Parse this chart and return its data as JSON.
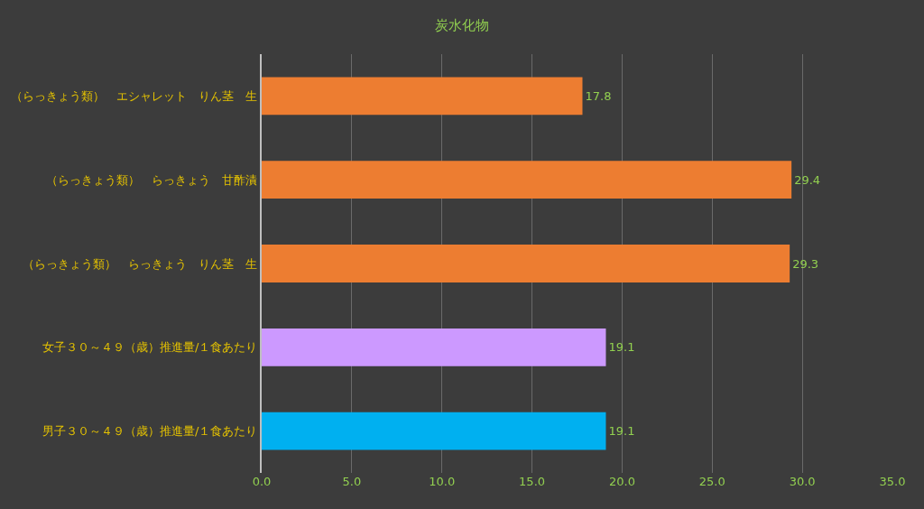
{
  "chart_data": {
    "type": "bar",
    "orientation": "horizontal",
    "title": "炭水化物",
    "categories": [
      "（らっきょう類）　エシャレット　りん茎　生",
      "（らっきょう類）　らっきょう　甘酢漬",
      "（らっきょう類）　らっきょう　りん茎　生",
      "女子３０～４９（歳）推進量/１食あたり",
      "男子３０～４９（歳）推進量/１食あたり"
    ],
    "values": [
      17.8,
      29.4,
      29.3,
      19.1,
      19.1
    ],
    "colors": [
      "#ed7d31",
      "#ed7d31",
      "#ed7d31",
      "#cc99ff",
      "#00b0f0"
    ],
    "xlim": [
      0,
      35
    ],
    "xticks": [
      {
        "value": 0,
        "label": "0.0"
      },
      {
        "value": 5,
        "label": "5.0"
      },
      {
        "value": 10,
        "label": "10.0"
      },
      {
        "value": 15,
        "label": "15.0"
      },
      {
        "value": 20,
        "label": "20.0"
      },
      {
        "value": 25,
        "label": "25.0"
      },
      {
        "value": 30,
        "label": "30.0"
      },
      {
        "value": 35,
        "label": "35.0"
      }
    ],
    "grid": "x",
    "data_labels": true,
    "legend": false
  }
}
